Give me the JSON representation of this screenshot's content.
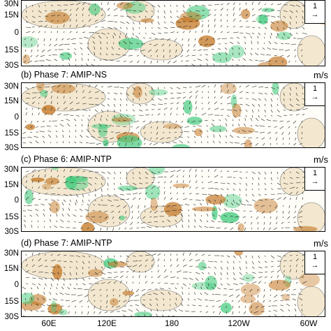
{
  "units": "m/s",
  "reference_vector": "1",
  "lat_labels": [
    "30N",
    "15N",
    "0",
    "15S",
    "30S"
  ],
  "lon_labels": [
    "60E",
    "120E",
    "180",
    "120W",
    "60W"
  ],
  "panels": [
    {
      "title": ""
    },
    {
      "title": "(b) Phase 7: AMIP-NS"
    },
    {
      "title": "(c) Phase 6: AMIP-NTP"
    },
    {
      "title": "(d) Phase 7: AMIP-NTP"
    }
  ],
  "colors": {
    "wet": "#3cc97a",
    "dry": "#c0701a",
    "land": "#f3e7cf",
    "vector": "#222222"
  }
}
